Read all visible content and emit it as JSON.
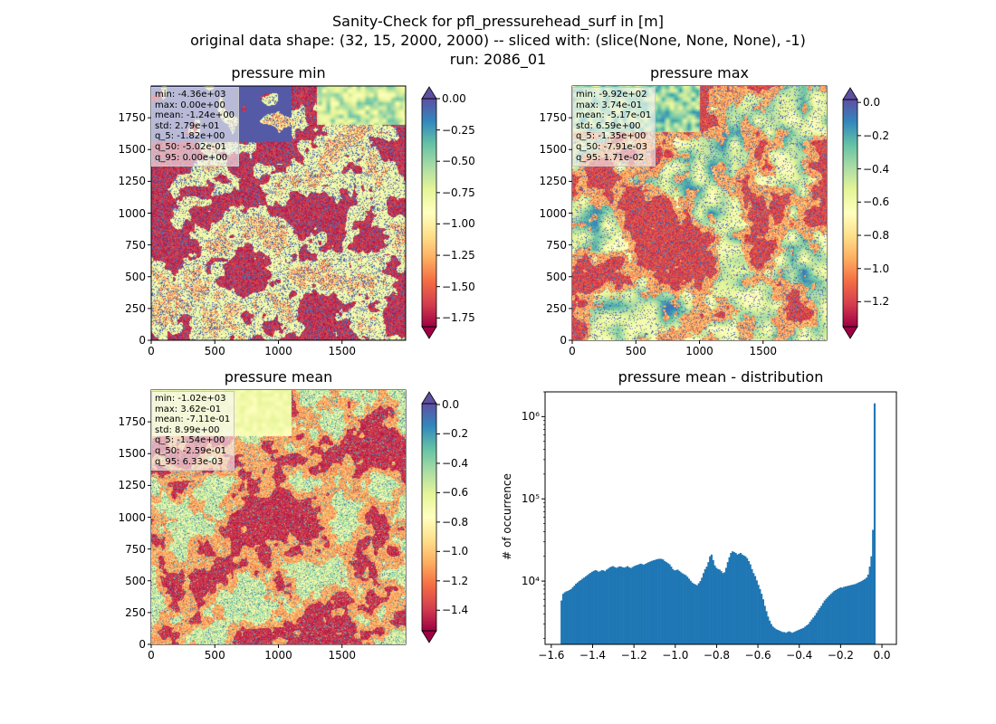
{
  "figure": {
    "title_line1": "Sanity-Check for pfl_pressurehead_surf in [m]",
    "title_line2": "original data shape: (32, 15, 2000, 2000) -- sliced with: (slice(None, None, None), -1)",
    "title_line3": "run: 2086_01"
  },
  "colors": {
    "spectral": [
      "#9e0142",
      "#d53e4f",
      "#f46d43",
      "#fdae61",
      "#fee08b",
      "#ffffbf",
      "#e6f598",
      "#abdda4",
      "#66c2a5",
      "#3288bd",
      "#5e4fa2"
    ],
    "histogram": "#1f77b4"
  },
  "chart_data": [
    {
      "type": "heatmap",
      "title": "pressure min",
      "xlim": [
        0,
        2000
      ],
      "ylim": [
        0,
        2000
      ],
      "x_ticks": [
        "0",
        "500",
        "1000",
        "1500"
      ],
      "y_ticks": [
        "0",
        "250",
        "500",
        "750",
        "1000",
        "1250",
        "1500",
        "1750"
      ],
      "colorbar": {
        "vmin": -1.82,
        "vmax": 0.0,
        "extend": "both",
        "ticks": [
          "0.00",
          "−0.25",
          "−0.50",
          "−0.75",
          "−1.00",
          "−1.25",
          "−1.50",
          "−1.75"
        ]
      },
      "stats": [
        "min: -4.36e+03",
        "max: 0.00e+00",
        "mean: -1.24e+00",
        "std: 2.79e+01",
        "q_5: -1.82e+00",
        "q_50: -5.02e-01",
        "q_95: 0.00e+00"
      ]
    },
    {
      "type": "heatmap",
      "title": "pressure max",
      "xlim": [
        0,
        2000
      ],
      "ylim": [
        0,
        2000
      ],
      "x_ticks": [
        "0",
        "500",
        "1000",
        "1500"
      ],
      "y_ticks": [
        "0",
        "250",
        "500",
        "750",
        "1000",
        "1250",
        "1500",
        "1750"
      ],
      "colorbar": {
        "vmin": -1.35,
        "vmax": 0.0171,
        "extend": "both",
        "ticks": [
          "0.0",
          "−0.2",
          "−0.4",
          "−0.6",
          "−0.8",
          "−1.0",
          "−1.2"
        ]
      },
      "stats": [
        "min: -9.92e+02",
        "max: 3.74e-01",
        "mean: -5.17e-01",
        "std: 6.59e+00",
        "q_5: -1.35e+00",
        "q_50: -7.91e-03",
        "q_95: 1.71e-02"
      ]
    },
    {
      "type": "heatmap",
      "title": "pressure mean",
      "xlim": [
        0,
        2000
      ],
      "ylim": [
        0,
        2000
      ],
      "x_ticks": [
        "0",
        "500",
        "1000",
        "1500"
      ],
      "y_ticks": [
        "0",
        "250",
        "500",
        "750",
        "1000",
        "1250",
        "1500",
        "1750"
      ],
      "colorbar": {
        "vmin": -1.54,
        "vmax": 0.00633,
        "extend": "both",
        "ticks": [
          "0.0",
          "−0.2",
          "−0.4",
          "−0.6",
          "−0.8",
          "−1.0",
          "−1.2",
          "−1.4"
        ]
      },
      "stats": [
        "min: -1.02e+03",
        "max: 3.62e-01",
        "mean: -7.11e-01",
        "std: 8.99e+00",
        "q_5: -1.54e+00",
        "q_50: -2.59e-01",
        "q_95: 6.33e-03"
      ]
    },
    {
      "type": "bar",
      "title": "pressure mean - distribution",
      "ylabel": "# of occurrence",
      "xlabel": "",
      "y_scale": "log",
      "xlim": [
        -1.63,
        0.07
      ],
      "ylim": [
        1700,
        2000000
      ],
      "x_ticks": [
        "−1.6",
        "−1.4",
        "−1.2",
        "−1.0",
        "−0.8",
        "−0.6",
        "−0.4",
        "−0.2",
        "0.0"
      ],
      "y_ticks": [
        "10⁴",
        "10⁵",
        "10⁶"
      ],
      "bin_start": -1.555,
      "bin_width": 0.00781,
      "values": [
        5800,
        7000,
        7300,
        7500,
        7600,
        7800,
        8000,
        8400,
        8800,
        9300,
        9600,
        10000,
        10300,
        10700,
        11000,
        11400,
        11800,
        12200,
        12600,
        13000,
        13300,
        13600,
        13400,
        13000,
        13200,
        13600,
        13500,
        13200,
        13800,
        14200,
        14700,
        15000,
        15200,
        14800,
        14500,
        14800,
        15100,
        15000,
        14700,
        14600,
        14900,
        15200,
        14700,
        14400,
        14800,
        15200,
        15500,
        15700,
        16000,
        16300,
        16100,
        15800,
        16200,
        16600,
        17000,
        17300,
        17600,
        17900,
        18100,
        18400,
        18600,
        18700,
        18600,
        18300,
        17500,
        17000,
        16500,
        16000,
        15000,
        14000,
        13500,
        13600,
        13800,
        13300,
        12800,
        12400,
        12100,
        11800,
        11300,
        10700,
        10100,
        9600,
        9300,
        9100,
        8900,
        9400,
        10000,
        11000,
        12500,
        14000,
        15000,
        17000,
        20000,
        21000,
        18000,
        15500,
        14500,
        14000,
        13800,
        13200,
        12500,
        12800,
        14500,
        17000,
        19500,
        22000,
        23000,
        22500,
        22000,
        21000,
        21500,
        22000,
        21000,
        20500,
        20000,
        19000,
        17500,
        16000,
        14000,
        12500,
        11500,
        10200,
        9000,
        8000,
        7000,
        6000,
        5000,
        4300,
        3700,
        3300,
        3000,
        2800,
        2700,
        2600,
        2550,
        2500,
        2450,
        2400,
        2400,
        2350,
        2400,
        2450,
        2400,
        2350,
        2400,
        2450,
        2500,
        2550,
        2600,
        2650,
        2700,
        2800,
        2900,
        3000,
        3200,
        3400,
        3600,
        3800,
        4100,
        4400,
        4700,
        5000,
        5400,
        5800,
        6100,
        6400,
        6700,
        7000,
        7300,
        7600,
        7800,
        8000,
        8200,
        8400,
        8300,
        8500,
        8600,
        8700,
        8800,
        8900,
        9000,
        9100,
        9200,
        9400,
        9600,
        9800,
        10000,
        10300,
        10600,
        11000,
        12000,
        15000,
        20000,
        42000,
        1450000
      ]
    }
  ]
}
